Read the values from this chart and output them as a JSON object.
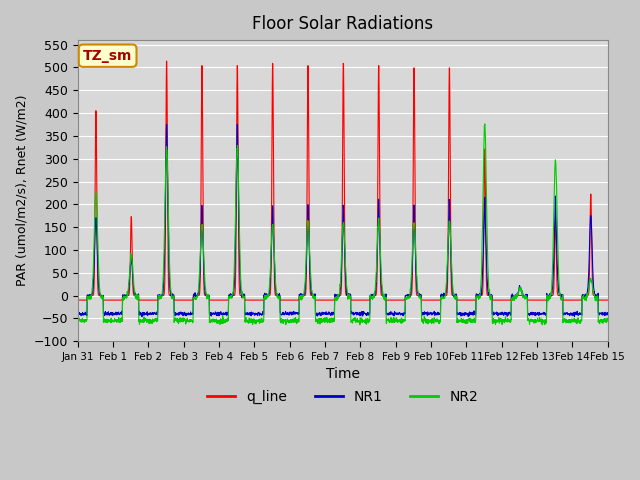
{
  "title": "Floor Solar Radiations",
  "xlabel": "Time",
  "ylabel": "PAR (umol/m2/s), Rnet (W/m2)",
  "ylim": [
    -100,
    560
  ],
  "yticks": [
    -100,
    -50,
    0,
    50,
    100,
    150,
    200,
    250,
    300,
    350,
    400,
    450,
    500,
    550
  ],
  "xtick_labels": [
    "Jan 31",
    "Feb 1",
    "Feb 2",
    "Feb 3",
    "Feb 4",
    "Feb 5",
    "Feb 6",
    "Feb 7",
    "Feb 8",
    "Feb 9",
    "Feb 10",
    "Feb 11",
    "Feb 12",
    "Feb 13",
    "Feb 14",
    "Feb 15"
  ],
  "legend_labels": [
    "q_line",
    "NR1",
    "NR2"
  ],
  "legend_colors": [
    "#ff0000",
    "#0000cc",
    "#00cc00"
  ],
  "fig_bg_color": "#c8c8c8",
  "plot_bg": "#d8d8d8",
  "annotation_text": "TZ_sm",
  "annotation_bg": "#ffffcc",
  "annotation_border": "#cc8800",
  "q_color": "#ff0000",
  "nr1_color": "#0000cc",
  "nr2_color": "#00cc00",
  "q_peaks": [
    410,
    175,
    520,
    510,
    510,
    515,
    510,
    515,
    510,
    505,
    505,
    325,
    0,
    170,
    225,
    0
  ],
  "nr1_peaks": [
    170,
    80,
    330,
    160,
    330,
    160,
    160,
    160,
    170,
    160,
    170,
    175,
    20,
    175,
    175,
    30
  ],
  "nr2_peaks": [
    230,
    90,
    330,
    160,
    330,
    160,
    165,
    165,
    170,
    165,
    170,
    380,
    20,
    300,
    40,
    30
  ]
}
